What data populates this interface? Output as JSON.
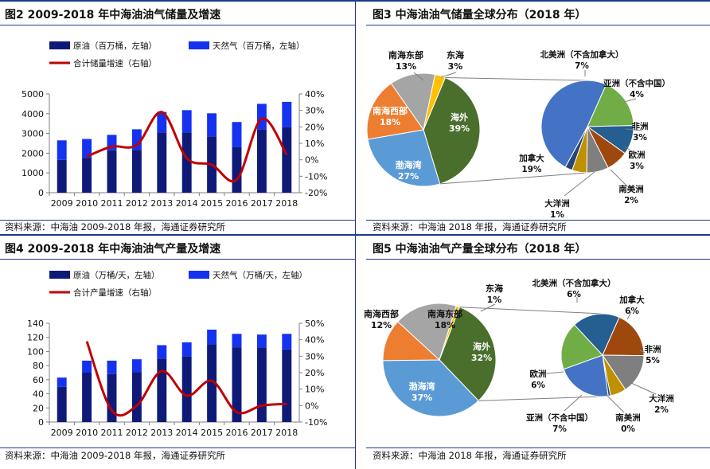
{
  "colors": {
    "crude": "#0f1a78",
    "gas": "#1432f0",
    "growth": "#c00000",
    "border": "#1a3a8a"
  },
  "chart_data": [
    {
      "id": "fig2",
      "type": "bar",
      "title": "图2   2009-2018 年中海油油气储量及增速",
      "source": "资料来源：中海油 2009-2018 年报，海通证券研究所",
      "categories": [
        "2009",
        "2010",
        "2011",
        "2012",
        "2013",
        "2014",
        "2015",
        "2016",
        "2017",
        "2018"
      ],
      "series": [
        {
          "name": "原油（百万桶，左轴）",
          "kind": "bar",
          "axis": "left",
          "color_key": "crude",
          "values": [
            1660,
            1770,
            2150,
            2170,
            3050,
            3050,
            2850,
            2300,
            3200,
            3320
          ]
        },
        {
          "name": "天然气（百万桶，左轴）",
          "kind": "bar",
          "axis": "left",
          "color_key": "gas",
          "values": [
            990,
            950,
            780,
            1040,
            1040,
            1130,
            1170,
            1280,
            1300,
            1280
          ]
        },
        {
          "name": "合计储量增速（右轴）",
          "kind": "line",
          "axis": "right",
          "color_key": "growth",
          "values": [
            null,
            2,
            8,
            9,
            29,
            1,
            -3,
            -12,
            25,
            3
          ]
        }
      ],
      "yleft": {
        "min": 0,
        "max": 5000,
        "ticks": [
          "0",
          "1000",
          "2000",
          "3000",
          "4000",
          "5000"
        ]
      },
      "yright": {
        "min": -20,
        "max": 40,
        "ticks": [
          "-20%",
          "-10%",
          "0%",
          "10%",
          "20%",
          "30%",
          "40%"
        ]
      }
    },
    {
      "id": "fig4",
      "type": "bar",
      "title": "图4   2009-2018 年中海油油气产量及增速",
      "source": "资料来源：中海油 2009-2018 年报，海通证券研究所",
      "categories": [
        "2009",
        "2010",
        "2011",
        "2012",
        "2013",
        "2014",
        "2015",
        "2016",
        "2017",
        "2018"
      ],
      "series": [
        {
          "name": "原油（万桶/天，左轴）",
          "kind": "bar",
          "axis": "left",
          "color_key": "crude",
          "values": [
            50,
            70,
            68,
            71,
            90,
            93,
            110,
            106,
            105,
            103
          ]
        },
        {
          "name": "天然气（万桶/天，左轴）",
          "kind": "bar",
          "axis": "left",
          "color_key": "gas",
          "values": [
            13,
            17,
            19,
            18,
            19,
            20,
            21,
            19,
            19,
            22
          ]
        },
        {
          "name": "合计产量增速（右轴）",
          "kind": "line",
          "axis": "right",
          "color_key": "growth",
          "values": [
            null,
            39,
            -3,
            0,
            21,
            6,
            15,
            -4,
            0,
            1
          ]
        }
      ],
      "yleft": {
        "min": 0,
        "max": 140,
        "ticks": [
          "0",
          "20",
          "40",
          "60",
          "80",
          "100",
          "120",
          "140"
        ]
      },
      "yright": {
        "min": -10,
        "max": 50,
        "ticks": [
          "-10%",
          "0%",
          "10%",
          "20%",
          "30%",
          "40%",
          "50%"
        ]
      }
    },
    {
      "id": "fig3",
      "type": "pie",
      "title": "图3   中海油油气储量全球分布（2018 年）",
      "source": "资料来源：中海油 2018 年报，海通证券研究所",
      "main": [
        {
          "name": "海外",
          "value": 39,
          "label": "39%",
          "color": "#4a6e2c"
        },
        {
          "name": "渤海湾",
          "value": 27,
          "label": "27%",
          "color": "#5b9bd5"
        },
        {
          "name": "南海西部",
          "value": 18,
          "label": "18%",
          "color": "#ed7d31"
        },
        {
          "name": "南海东部",
          "value": 13,
          "label": "13%",
          "color": "#a5a5a5"
        },
        {
          "name": "东海",
          "value": 3,
          "label": "3%",
          "color": "#ffc000"
        }
      ],
      "detail": [
        {
          "name": "北美洲（不含加拿大）",
          "value": 7,
          "label": "7%",
          "color": "#70ad47"
        },
        {
          "name": "亚洲（不含中国）",
          "value": 4,
          "label": "4%",
          "color": "#255e91"
        },
        {
          "name": "非洲",
          "value": 3,
          "label": "3%",
          "color": "#9e480e"
        },
        {
          "name": "欧洲",
          "value": 3,
          "label": "3%",
          "color": "#7f7f7f"
        },
        {
          "name": "南美洲",
          "value": 2,
          "label": "2%",
          "color": "#bf9000"
        },
        {
          "name": "大洋洲",
          "value": 1,
          "label": "1%",
          "color": "#264478"
        },
        {
          "name": "加拿大",
          "value": 19,
          "label": "19%",
          "color": "#4472c4"
        }
      ]
    },
    {
      "id": "fig5",
      "type": "pie",
      "title": "图5   中海油油气产量全球分布（2018 年）",
      "source": "资料来源：中海油 2018 年报，海通证券研究所",
      "main": [
        {
          "name": "海外",
          "value": 32,
          "label": "32%",
          "color": "#4a6e2c"
        },
        {
          "name": "渤海湾",
          "value": 37,
          "label": "37%",
          "color": "#5b9bd5"
        },
        {
          "name": "南海西部",
          "value": 12,
          "label": "12%",
          "color": "#ed7d31"
        },
        {
          "name": "南海东部",
          "value": 18,
          "label": "18%",
          "color": "#a5a5a5"
        },
        {
          "name": "东海",
          "value": 1,
          "label": "1%",
          "color": "#ffc000"
        }
      ],
      "detail": [
        {
          "name": "北美洲（不含加拿大）",
          "value": 6,
          "label": "6%",
          "color": "#255e91"
        },
        {
          "name": "加拿大",
          "value": 6,
          "label": "6%",
          "color": "#9e480e"
        },
        {
          "name": "非洲",
          "value": 5,
          "label": "5%",
          "color": "#7f7f7f"
        },
        {
          "name": "大洋洲",
          "value": 2,
          "label": "2%",
          "color": "#bf9000"
        },
        {
          "name": "南美洲",
          "value": 0.3,
          "label": "0%",
          "color": "#264478"
        },
        {
          "name": "亚洲（不含中国）",
          "value": 7,
          "label": "7%",
          "color": "#4472c4"
        },
        {
          "name": "欧洲",
          "value": 6,
          "label": "6%",
          "color": "#70ad47"
        }
      ]
    }
  ]
}
